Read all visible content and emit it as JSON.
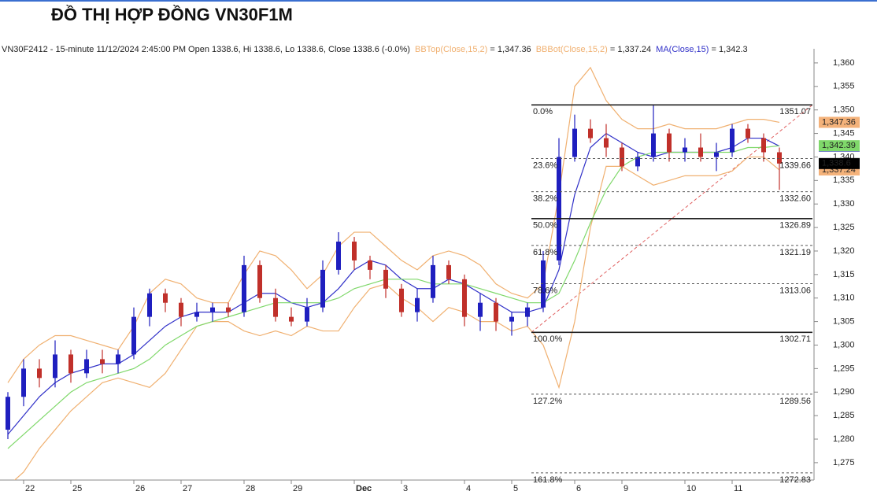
{
  "chart_data": {
    "type": "candlestick",
    "title": "ĐỒ THỊ HỢP ĐỒNG VN30F1M",
    "header": "VN30F2412 - 15-minute 11/12/2024 2:45:00 PM Open 1338.6, Hi 1338.6, Lo 1338.6, Close 1338.6 (-0.0%)",
    "categories": [
      null,
      "22",
      null,
      null,
      "25",
      null,
      null,
      null,
      "26",
      null,
      null,
      "27",
      null,
      null,
      null,
      "28",
      null,
      null,
      "29",
      null,
      null,
      null,
      "Dec",
      null,
      null,
      "3",
      null,
      null,
      null,
      "4",
      null,
      null,
      "5",
      null,
      null,
      null,
      "6",
      null,
      null,
      "9",
      null,
      null,
      null,
      "10",
      null,
      null,
      "11",
      null,
      null,
      null
    ],
    "candles": [
      {
        "open": 1282,
        "high": 1290,
        "low": 1280,
        "close": 1289
      },
      {
        "open": 1289,
        "high": 1297,
        "low": 1287,
        "close": 1295
      },
      {
        "open": 1295,
        "high": 1297,
        "low": 1291,
        "close": 1293
      },
      {
        "open": 1293,
        "high": 1301,
        "low": 1291,
        "close": 1298
      },
      {
        "open": 1298,
        "high": 1299,
        "low": 1292,
        "close": 1294
      },
      {
        "open": 1294,
        "high": 1299,
        "low": 1293,
        "close": 1297
      },
      {
        "open": 1297,
        "high": 1299,
        "low": 1294,
        "close": 1296
      },
      {
        "open": 1296,
        "high": 1299,
        "low": 1294,
        "close": 1298
      },
      {
        "open": 1298,
        "high": 1308,
        "low": 1297,
        "close": 1306
      },
      {
        "open": 1306,
        "high": 1312,
        "low": 1304,
        "close": 1311
      },
      {
        "open": 1311,
        "high": 1312,
        "low": 1307,
        "close": 1309
      },
      {
        "open": 1309,
        "high": 1310,
        "low": 1304,
        "close": 1306
      },
      {
        "open": 1306,
        "high": 1309,
        "low": 1305,
        "close": 1307
      },
      {
        "open": 1307,
        "high": 1309,
        "low": 1305,
        "close": 1308
      },
      {
        "open": 1308,
        "high": 1309,
        "low": 1306,
        "close": 1307
      },
      {
        "open": 1307,
        "high": 1319,
        "low": 1306,
        "close": 1317
      },
      {
        "open": 1317,
        "high": 1318,
        "low": 1309,
        "close": 1310
      },
      {
        "open": 1310,
        "high": 1312,
        "low": 1305,
        "close": 1306
      },
      {
        "open": 1306,
        "high": 1308,
        "low": 1304,
        "close": 1305
      },
      {
        "open": 1305,
        "high": 1310,
        "low": 1304,
        "close": 1308
      },
      {
        "open": 1308,
        "high": 1318,
        "low": 1307,
        "close": 1316
      },
      {
        "open": 1316,
        "high": 1324,
        "low": 1315,
        "close": 1322
      },
      {
        "open": 1322,
        "high": 1323,
        "low": 1316,
        "close": 1318
      },
      {
        "open": 1318,
        "high": 1319,
        "low": 1314,
        "close": 1316
      },
      {
        "open": 1316,
        "high": 1317,
        "low": 1310,
        "close": 1312
      },
      {
        "open": 1312,
        "high": 1313,
        "low": 1306,
        "close": 1307
      },
      {
        "open": 1307,
        "high": 1312,
        "low": 1305,
        "close": 1310
      },
      {
        "open": 1310,
        "high": 1319,
        "low": 1309,
        "close": 1317
      },
      {
        "open": 1317,
        "high": 1318,
        "low": 1313,
        "close": 1314
      },
      {
        "open": 1314,
        "high": 1315,
        "low": 1304,
        "close": 1306
      },
      {
        "open": 1306,
        "high": 1311,
        "low": 1303,
        "close": 1309
      },
      {
        "open": 1309,
        "high": 1310,
        "low": 1303,
        "close": 1305
      },
      {
        "open": 1305,
        "high": 1307,
        "low": 1302,
        "close": 1306
      },
      {
        "open": 1306,
        "high": 1309,
        "low": 1304,
        "close": 1308
      },
      {
        "open": 1308,
        "high": 1320,
        "low": 1307,
        "close": 1318
      },
      {
        "open": 1318,
        "high": 1344,
        "low": 1317,
        "close": 1340
      },
      {
        "open": 1340,
        "high": 1349,
        "low": 1339,
        "close": 1346
      },
      {
        "open": 1346,
        "high": 1348,
        "low": 1343,
        "close": 1344
      },
      {
        "open": 1344,
        "high": 1347,
        "low": 1340,
        "close": 1342
      },
      {
        "open": 1342,
        "high": 1343,
        "low": 1337,
        "close": 1338
      },
      {
        "open": 1338,
        "high": 1341,
        "low": 1337,
        "close": 1340
      },
      {
        "open": 1340,
        "high": 1351,
        "low": 1339,
        "close": 1345
      },
      {
        "open": 1345,
        "high": 1346,
        "low": 1339,
        "close": 1341
      },
      {
        "open": 1341,
        "high": 1344,
        "low": 1339,
        "close": 1342
      },
      {
        "open": 1342,
        "high": 1345,
        "low": 1339,
        "close": 1340
      },
      {
        "open": 1340,
        "high": 1343,
        "low": 1337,
        "close": 1341
      },
      {
        "open": 1341,
        "high": 1347,
        "low": 1340,
        "close": 1346
      },
      {
        "open": 1346,
        "high": 1347,
        "low": 1343,
        "close": 1344
      },
      {
        "open": 1344,
        "high": 1345,
        "low": 1339,
        "close": 1341
      },
      {
        "open": 1341,
        "high": 1342,
        "low": 1333,
        "close": 1338.6
      }
    ],
    "up_color": "#1f1fbf",
    "down_color": "#c0302a",
    "series": [
      {
        "name": "BBTop(Close,15,2)",
        "color": "#f0b070",
        "last_label": "1,347.36",
        "values": [
          1292,
          1297,
          1300,
          1302,
          1302,
          1301,
          1300,
          1299,
          1304,
          1311,
          1314,
          1313,
          1310,
          1309,
          1309,
          1315,
          1320,
          1319,
          1316,
          1312,
          1315,
          1321,
          1324,
          1324,
          1321,
          1318,
          1316,
          1319,
          1320,
          1319,
          1317,
          1313,
          1311,
          1310,
          1313,
          1332,
          1355,
          1359,
          1352,
          1348,
          1346,
          1346,
          1347,
          1346,
          1346,
          1346,
          1347,
          1348,
          1348,
          1347.36
        ]
      },
      {
        "name": "BBBot(Close,15,2)",
        "color": "#f0b070",
        "last_label": "1,337.24",
        "values": [
          1270,
          1273,
          1278,
          1282,
          1286,
          1289,
          1292,
          1293,
          1292,
          1291,
          1294,
          1299,
          1304,
          1305,
          1305,
          1303,
          1302,
          1303,
          1302,
          1304,
          1303,
          1303,
          1308,
          1312,
          1313,
          1310,
          1308,
          1305,
          1308,
          1307,
          1305,
          1305,
          1303,
          1304,
          1300,
          1291,
          1305,
          1325,
          1338,
          1338,
          1336,
          1334,
          1335,
          1336,
          1336,
          1336,
          1337,
          1340,
          1340,
          1337.24
        ]
      },
      {
        "name": "MA(Close,15)",
        "color": "#3030c8",
        "last_label": "1,342.3",
        "values": [
          1281,
          1285,
          1289,
          1292,
          1294,
          1295,
          1296,
          1296,
          1298,
          1301,
          1304,
          1306,
          1307,
          1307,
          1307,
          1309,
          1311,
          1311,
          1309,
          1308,
          1309,
          1312,
          1316,
          1318,
          1317,
          1314,
          1312,
          1312,
          1314,
          1313,
          1311,
          1309,
          1307,
          1307,
          1308,
          1316,
          1332,
          1342,
          1345,
          1343,
          1341,
          1340,
          1341,
          1341,
          1341,
          1341,
          1342,
          1344,
          1344,
          1342.3
        ]
      },
      {
        "color": "#7fd86a",
        "last_label": "1,342.39",
        "values": [
          1278,
          1281,
          1284,
          1287,
          1290,
          1292,
          1293,
          1294,
          1295,
          1297,
          1300,
          1302,
          1304,
          1305,
          1306,
          1307,
          1308,
          1309,
          1309,
          1309,
          1309,
          1310,
          1312,
          1313,
          1314,
          1314,
          1314,
          1313,
          1313,
          1313,
          1312,
          1311,
          1310,
          1309,
          1309,
          1311,
          1318,
          1326,
          1333,
          1338,
          1340,
          1341,
          1341,
          1341,
          1341,
          1341,
          1341,
          1342,
          1342,
          1342.39
        ]
      }
    ],
    "last_price": {
      "value": 1338.6,
      "label": "1,338.6"
    },
    "fib_levels": [
      {
        "ratio": "0.0%",
        "value": 1351.07,
        "style": "solid"
      },
      {
        "ratio": "23.6%",
        "value": 1339.66,
        "style": "dashed"
      },
      {
        "ratio": "38.2%",
        "value": 1332.6,
        "value_label": "1332.60",
        "style": "dashed"
      },
      {
        "ratio": "50.0%",
        "value": 1326.89,
        "style": "solid"
      },
      {
        "ratio": "61.8%",
        "value": 1321.19,
        "style": "dashed"
      },
      {
        "ratio": "78.6%",
        "value": 1313.06,
        "style": "dashed"
      },
      {
        "ratio": "100.0%",
        "value": 1302.71,
        "style": "solid"
      },
      {
        "ratio": "127.2%",
        "value": 1289.56,
        "style": "dashed"
      },
      {
        "ratio": "161.8%",
        "value": 1272.83,
        "style": "dashed"
      }
    ],
    "ylim": [
      1271.3,
      1363
    ],
    "yticks": [
      {
        "value": 1275,
        "label": "1,275"
      },
      {
        "value": 1280,
        "label": "1,280"
      },
      {
        "value": 1285,
        "label": "1,285"
      },
      {
        "value": 1290,
        "label": "1,290"
      },
      {
        "value": 1295,
        "label": "1,295"
      },
      {
        "value": 1300,
        "label": "1,300"
      },
      {
        "value": 1305,
        "label": "1,305"
      },
      {
        "value": 1310,
        "label": "1,310"
      },
      {
        "value": 1315,
        "label": "1,315"
      },
      {
        "value": 1320,
        "label": "1,320"
      },
      {
        "value": 1325,
        "label": "1,325"
      },
      {
        "value": 1330,
        "label": "1,330"
      },
      {
        "value": 1335,
        "label": "1,335"
      },
      {
        "value": 1340,
        "label": "1,340"
      },
      {
        "value": 1345,
        "label": "1,345"
      },
      {
        "value": 1350,
        "label": "1,350"
      },
      {
        "value": 1355,
        "label": "1,355"
      },
      {
        "value": 1360,
        "label": "1,360"
      }
    ]
  }
}
